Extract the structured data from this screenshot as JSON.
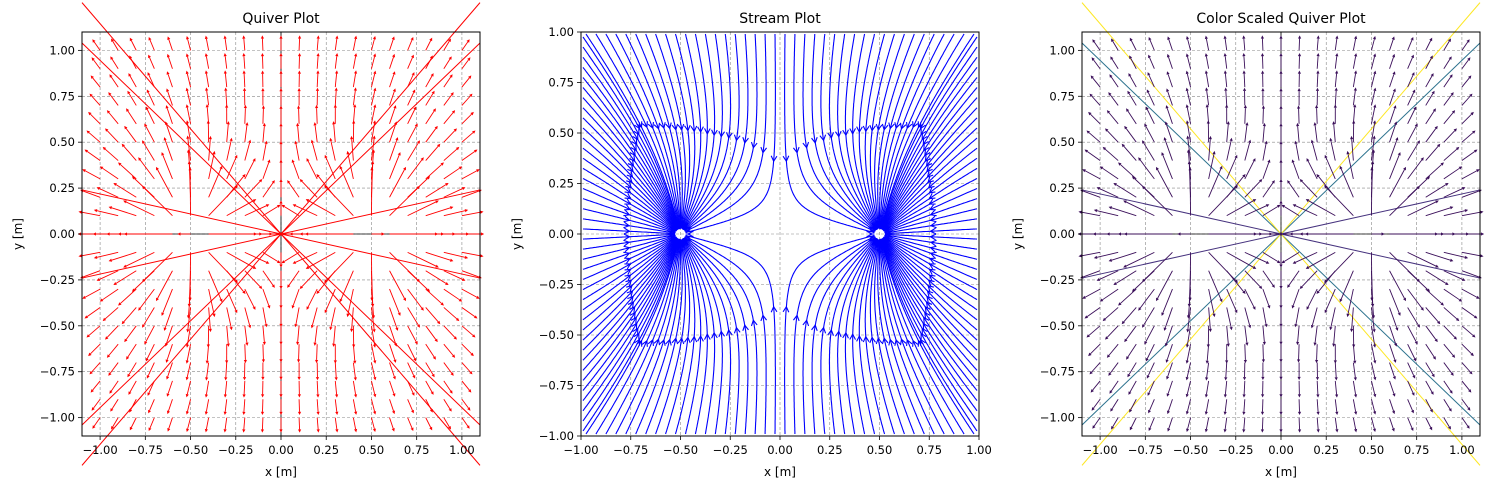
{
  "figure": {
    "background": "#ffffff"
  },
  "chart_data": [
    {
      "type": "quiver",
      "title": "Quiver Plot",
      "xlabel": "x [m]",
      "ylabel": "y [m]",
      "xlim": [
        -1.1,
        1.1
      ],
      "ylim": [
        -1.1,
        1.1
      ],
      "xticks": [
        -1.0,
        -0.75,
        -0.5,
        -0.25,
        0.0,
        0.25,
        0.5,
        0.75,
        1.0
      ],
      "yticks": [
        -1.0,
        -0.75,
        -0.5,
        -0.25,
        0.0,
        0.25,
        0.5,
        0.75,
        1.0
      ],
      "xtick_labels": [
        "−1.00",
        "−0.75",
        "−0.50",
        "−0.25",
        "0.00",
        "0.25",
        "0.50",
        "0.75",
        "1.00"
      ],
      "ytick_labels": [
        "−1.00",
        "−0.75",
        "−0.50",
        "−0.25",
        "0.00",
        "0.25",
        "0.50",
        "0.75",
        "1.00"
      ],
      "grid": true,
      "grid_style": "dashed",
      "color": "#ff0000",
      "axis_lines_at_zero": true,
      "sources": [
        {
          "x": -0.5,
          "y": 0.0,
          "q": 1
        },
        {
          "x": 0.5,
          "y": 0.0,
          "q": 1
        }
      ],
      "grid_points": {
        "start": -1.0,
        "stop": 1.0,
        "count": 21
      },
      "lines": [
        {
          "x": [
            -1.1,
            1.1
          ],
          "y": [
            0.24,
            -0.24
          ]
        },
        {
          "x": [
            -1.1,
            1.1
          ],
          "y": [
            -0.24,
            0.24
          ]
        },
        {
          "x": [
            -1.1,
            1.1
          ],
          "y": [
            -1.04,
            1.04
          ]
        },
        {
          "x": [
            -1.1,
            1.1
          ],
          "y": [
            1.04,
            -1.04
          ]
        },
        {
          "x": [
            -1.1,
            1.1
          ],
          "y": [
            1.26,
            -1.26
          ]
        },
        {
          "x": [
            -1.1,
            1.1
          ],
          "y": [
            -1.26,
            1.26
          ]
        }
      ]
    },
    {
      "type": "stream",
      "title": "Stream Plot",
      "xlabel": "x [m]",
      "ylabel": "y [m]",
      "xlim": [
        -1.0,
        1.0
      ],
      "ylim": [
        -1.0,
        1.0
      ],
      "xticks": [
        -1.0,
        -0.75,
        -0.5,
        -0.25,
        0.0,
        0.25,
        0.5,
        0.75,
        1.0
      ],
      "yticks": [
        -1.0,
        -0.75,
        -0.5,
        -0.25,
        0.0,
        0.25,
        0.5,
        0.75,
        1.0
      ],
      "xtick_labels": [
        "−1.00",
        "−0.75",
        "−0.50",
        "−0.25",
        "0.00",
        "0.25",
        "0.50",
        "0.75",
        "1.00"
      ],
      "ytick_labels": [
        "−1.00",
        "−0.75",
        "−0.50",
        "−0.25",
        "0.00",
        "0.25",
        "0.50",
        "0.75",
        "1.00"
      ],
      "grid": true,
      "grid_style": "dashed",
      "color": "#0000ff",
      "sources": [
        {
          "x": -0.5,
          "y": 0.0,
          "q": 1
        },
        {
          "x": 0.5,
          "y": 0.0,
          "q": 1
        }
      ]
    },
    {
      "type": "quiver",
      "title": "Color Scaled Quiver Plot",
      "xlabel": "x [m]",
      "ylabel": "y [m]",
      "xlim": [
        -1.1,
        1.1
      ],
      "ylim": [
        -1.1,
        1.1
      ],
      "xticks": [
        -1.0,
        -0.75,
        -0.5,
        -0.25,
        0.0,
        0.25,
        0.5,
        0.75,
        1.0
      ],
      "yticks": [
        -1.0,
        -0.75,
        -0.5,
        -0.25,
        0.0,
        0.25,
        0.5,
        0.75,
        1.0
      ],
      "xtick_labels": [
        "−1.00",
        "−0.75",
        "−0.50",
        "−0.25",
        "0.00",
        "0.25",
        "0.50",
        "0.75",
        "1.00"
      ],
      "ytick_labels": [
        "−1.00",
        "−0.75",
        "−0.50",
        "−0.25",
        "0.00",
        "0.25",
        "0.50",
        "0.75",
        "1.00"
      ],
      "grid": true,
      "grid_style": "dashed",
      "colormap": "viridis",
      "arrow_color": "#3b0f5a",
      "axis_lines_at_zero": true,
      "sources": [
        {
          "x": -0.5,
          "y": 0.0,
          "q": 1
        },
        {
          "x": 0.5,
          "y": 0.0,
          "q": 1
        }
      ],
      "grid_points": {
        "start": -1.0,
        "stop": 1.0,
        "count": 21
      },
      "lines": [
        {
          "x": [
            -1.1,
            1.1
          ],
          "y": [
            0.24,
            -0.24
          ],
          "color": "#46327e"
        },
        {
          "x": [
            -1.1,
            1.1
          ],
          "y": [
            -0.24,
            0.24
          ],
          "color": "#46327e"
        },
        {
          "x": [
            -1.1,
            1.1
          ],
          "y": [
            -1.04,
            1.04
          ],
          "color": "#2c728e"
        },
        {
          "x": [
            -1.1,
            1.1
          ],
          "y": [
            1.04,
            -1.04
          ],
          "color": "#2c728e"
        },
        {
          "x": [
            -1.1,
            1.1
          ],
          "y": [
            1.26,
            -1.26
          ],
          "color": "#fde725"
        },
        {
          "x": [
            -1.1,
            1.1
          ],
          "y": [
            -1.26,
            1.26
          ],
          "color": "#fde725"
        }
      ]
    }
  ]
}
